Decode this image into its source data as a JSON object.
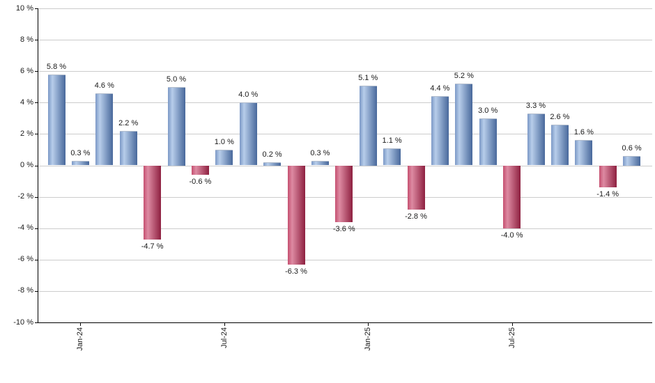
{
  "chart_data": {
    "type": "bar",
    "title": "",
    "xlabel": "",
    "ylabel": "",
    "values": [
      5.8,
      0.3,
      4.6,
      2.2,
      -4.7,
      5.0,
      -0.6,
      1.0,
      4.0,
      0.2,
      -6.3,
      0.3,
      -3.6,
      5.1,
      1.1,
      -2.8,
      4.4,
      5.2,
      3.0,
      -4.0,
      3.3,
      2.6,
      1.6,
      -1.4,
      0.6
    ],
    "value_labels": [
      "5.8 %",
      "0.3 %",
      "4.6 %",
      "2.2 %",
      "-4.7 %",
      "5.0 %",
      "-0.6 %",
      "1.0 %",
      "4.0 %",
      "0.2 %",
      "-6.3 %",
      "0.3 %",
      "-3.6 %",
      "5.1 %",
      "1.1 %",
      "-2.8 %",
      "4.4 %",
      "5.2 %",
      "3.0 %",
      "-4.0 %",
      "3.3 %",
      "2.6 %",
      "1.6 %",
      "-1.4 %",
      "0.6 %"
    ],
    "x_tick_labels": [
      "Jan-24",
      "Jul-24",
      "Jan-25",
      "Jul-25"
    ],
    "x_tick_bar_indices": [
      1,
      7,
      13,
      19
    ],
    "y_ticks": [
      10,
      8,
      6,
      4,
      2,
      0,
      -2,
      -4,
      -6,
      -8,
      -10
    ],
    "y_tick_labels": [
      "10 %",
      "8 %",
      "6 %",
      "4 %",
      "2 %",
      "0 %",
      "-2 %",
      "-4 %",
      "-6 %",
      "-8 %",
      "-10 %"
    ],
    "ylim": [
      -10,
      10
    ],
    "grid": true,
    "legend": "none",
    "colors": {
      "positive_edge_left": "#7b98c6",
      "positive_highlight": "#b7cdea",
      "positive_edge_right": "#48689b",
      "negative_edge_left": "#c55070",
      "negative_highlight": "#dd8aa2",
      "negative_edge_right": "#8e2040",
      "gridline": "#cccccc",
      "axis": "#000000",
      "text": "#1a1a1a"
    }
  }
}
